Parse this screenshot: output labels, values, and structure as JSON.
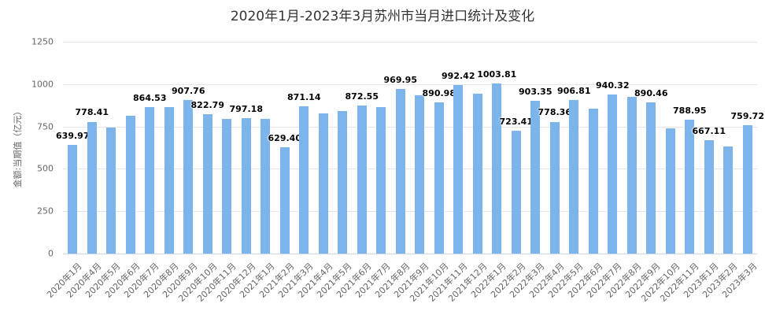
{
  "chart_data": {
    "type": "bar",
    "title": "2020年1月-2023年3月苏州市当月进口统计及变化",
    "xlabel": "",
    "ylabel": "金额:当期值（亿元）",
    "ylim": [
      0,
      1250
    ],
    "yticks": [
      0,
      250,
      500,
      750,
      1000,
      1250
    ],
    "grid": true,
    "legend": null,
    "bar_color": "#7cb5ec",
    "categories": [
      "2020年1月",
      "2020年4月",
      "2020年5月",
      "2020年6月",
      "2020年7月",
      "2020年8月",
      "2020年9月",
      "2020年10月",
      "2020年11月",
      "2020年12月",
      "2021年1月",
      "2021年2月",
      "2021年3月",
      "2021年4月",
      "2021年5月",
      "2021年6月",
      "2021年7月",
      "2021年8月",
      "2021年9月",
      "2021年10月",
      "2021年11月",
      "2021年12月",
      "2022年1月",
      "2022年2月",
      "2022年3月",
      "2022年4月",
      "2022年5月",
      "2022年6月",
      "2022年7月",
      "2022年8月",
      "2022年9月",
      "2022年10月",
      "2022年11月",
      "2023年1月",
      "2023年2月",
      "2023年3月"
    ],
    "values": [
      639.97,
      778.41,
      745,
      815,
      864.53,
      865,
      907.76,
      822.79,
      795,
      797.18,
      795,
      629.4,
      871.14,
      825,
      840,
      872.55,
      863,
      969.95,
      935,
      890.98,
      992.42,
      945,
      1003.81,
      723.41,
      903.35,
      778.36,
      906.81,
      857,
      940.32,
      925,
      890.46,
      740,
      788.95,
      667.11,
      632,
      759.72
    ],
    "labels": [
      "639.97",
      "778.41",
      "",
      "",
      "864.53",
      "",
      "907.76",
      "822.79",
      "",
      "797.18",
      "",
      "629.40",
      "871.14",
      "",
      "",
      "872.55",
      "",
      "969.95",
      "",
      "890.98",
      "992.42",
      "",
      "1003.81",
      "723.41",
      "903.35",
      "778.36",
      "906.81",
      "",
      "940.32",
      "",
      "890.46",
      "",
      "788.95",
      "667.11",
      "",
      "759.72"
    ]
  }
}
